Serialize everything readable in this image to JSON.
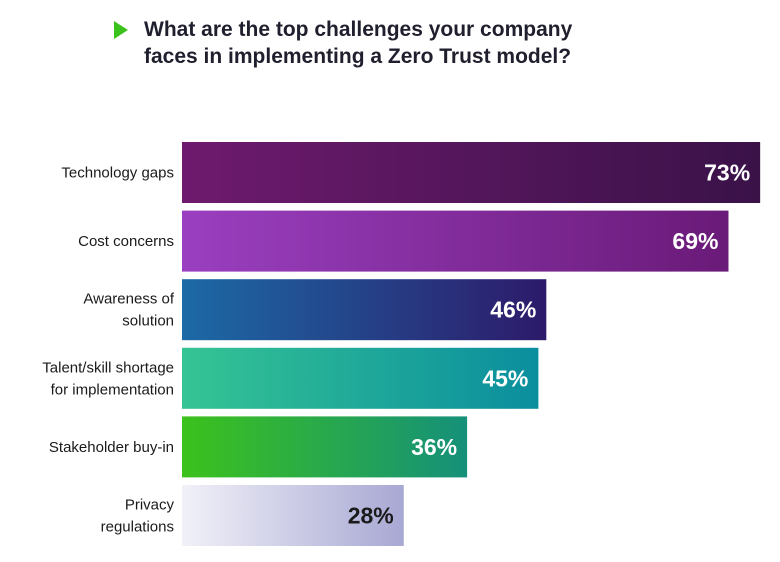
{
  "title": "What are the top challenges your company\nfaces in implementing a Zero Trust model?",
  "colors": {
    "title_arrow": "#3cc21c",
    "title_text": "#1f1f2e"
  },
  "chart_data": {
    "type": "bar",
    "orientation": "horizontal",
    "title": "What are the top challenges your company faces in implementing a Zero Trust model?",
    "categories": [
      "Technology gaps",
      "Cost concerns",
      "Awareness of solution",
      "Talent/skill shortage for implementation",
      "Stakeholder buy-in",
      "Privacy regulations"
    ],
    "category_lines": [
      [
        "Technology gaps"
      ],
      [
        "Cost concerns"
      ],
      [
        "Awareness of",
        "solution"
      ],
      [
        "Talent/skill shortage",
        "for implementation"
      ],
      [
        "Stakeholder buy-in"
      ],
      [
        "Privacy",
        "regulations"
      ]
    ],
    "values": [
      73,
      69,
      46,
      45,
      36,
      28
    ],
    "value_labels": [
      "73%",
      "69%",
      "46%",
      "45%",
      "36%",
      "28%"
    ],
    "unit": "%",
    "xlim": [
      0,
      100
    ],
    "grid": false,
    "legend": "none",
    "bar_gradients": [
      [
        "#6e1a6e",
        "#3a1248"
      ],
      [
        "#9a3fc0",
        "#6a1a78"
      ],
      [
        "#1c6aa6",
        "#2d1a6a"
      ],
      [
        "#35c494",
        "#0a8e9e"
      ],
      [
        "#3cc21c",
        "#15907a"
      ],
      [
        "#f1f1f8",
        "#a8a8d4"
      ]
    ],
    "value_label_colors": [
      "#ffffff",
      "#ffffff",
      "#ffffff",
      "#ffffff",
      "#ffffff",
      "#1a1a1a"
    ]
  }
}
